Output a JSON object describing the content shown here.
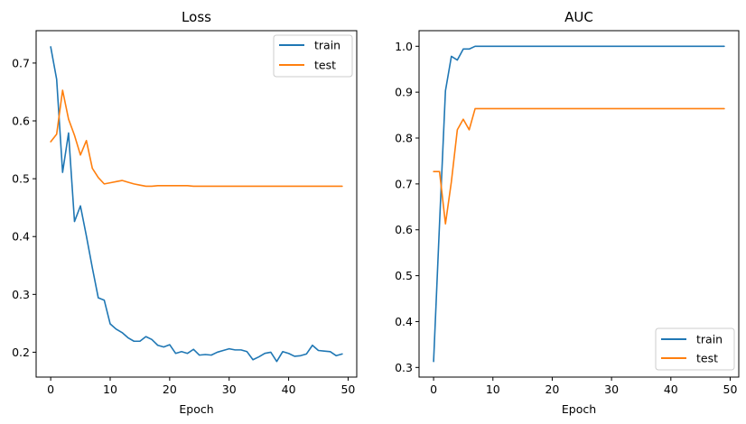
{
  "colors": {
    "train": "#1f77b4",
    "test": "#ff7f0e"
  },
  "chart_data": [
    {
      "type": "line",
      "title": "Loss",
      "xlabel": "Epoch",
      "ylabel": "",
      "xlim": [
        -2.45,
        51.45
      ],
      "ylim": [
        0.157,
        0.756
      ],
      "xticks": [
        0,
        10,
        20,
        30,
        40,
        50
      ],
      "yticks": [
        0.2,
        0.3,
        0.4,
        0.5,
        0.6,
        0.7
      ],
      "ytick_labels": [
        "0.2",
        "0.3",
        "0.4",
        "0.5",
        "0.6",
        "0.7"
      ],
      "legend_position": "upper right",
      "x": [
        0,
        1,
        2,
        3,
        4,
        5,
        6,
        7,
        8,
        9,
        10,
        11,
        12,
        13,
        14,
        15,
        16,
        17,
        18,
        19,
        20,
        21,
        22,
        23,
        24,
        25,
        26,
        27,
        28,
        29,
        30,
        31,
        32,
        33,
        34,
        35,
        36,
        37,
        38,
        39,
        40,
        41,
        42,
        43,
        44,
        45,
        46,
        47,
        48,
        49
      ],
      "series": [
        {
          "name": "train",
          "values": [
            0.728,
            0.672,
            0.511,
            0.579,
            0.426,
            0.453,
            0.401,
            0.346,
            0.294,
            0.29,
            0.249,
            0.24,
            0.234,
            0.225,
            0.219,
            0.219,
            0.227,
            0.222,
            0.212,
            0.209,
            0.213,
            0.198,
            0.201,
            0.198,
            0.205,
            0.195,
            0.196,
            0.195,
            0.2,
            0.203,
            0.206,
            0.204,
            0.204,
            0.201,
            0.187,
            0.192,
            0.198,
            0.2,
            0.184,
            0.201,
            0.198,
            0.193,
            0.194,
            0.197,
            0.212,
            0.203,
            0.202,
            0.201,
            0.194,
            0.197
          ]
        },
        {
          "name": "test",
          "values": [
            0.564,
            0.577,
            0.653,
            0.603,
            0.575,
            0.541,
            0.566,
            0.518,
            0.502,
            0.491,
            0.493,
            0.495,
            0.497,
            0.494,
            0.491,
            0.489,
            0.487,
            0.487,
            0.488,
            0.488,
            0.488,
            0.488,
            0.488,
            0.488,
            0.487,
            0.487,
            0.487,
            0.487,
            0.487,
            0.487,
            0.487,
            0.487,
            0.487,
            0.487,
            0.487,
            0.487,
            0.487,
            0.487,
            0.487,
            0.487,
            0.487,
            0.487,
            0.487,
            0.487,
            0.487,
            0.487,
            0.487,
            0.487,
            0.487,
            0.487
          ]
        }
      ]
    },
    {
      "type": "line",
      "title": "AUC",
      "xlabel": "Epoch",
      "ylabel": "",
      "xlim": [
        -2.45,
        51.45
      ],
      "ylim": [
        0.279,
        1.034
      ],
      "xticks": [
        0,
        10,
        20,
        30,
        40,
        50
      ],
      "yticks": [
        0.3,
        0.4,
        0.5,
        0.6,
        0.7,
        0.8,
        0.9,
        1.0
      ],
      "ytick_labels": [
        "0.3",
        "0.4",
        "0.5",
        "0.6",
        "0.7",
        "0.8",
        "0.9",
        "1.0"
      ],
      "legend_position": "lower right",
      "x": [
        0,
        1,
        2,
        3,
        4,
        5,
        6,
        7,
        8,
        9,
        10,
        11,
        12,
        13,
        14,
        15,
        16,
        17,
        18,
        19,
        20,
        21,
        22,
        23,
        24,
        25,
        26,
        27,
        28,
        29,
        30,
        31,
        32,
        33,
        34,
        35,
        36,
        37,
        38,
        39,
        40,
        41,
        42,
        43,
        44,
        45,
        46,
        47,
        48,
        49
      ],
      "series": [
        {
          "name": "train",
          "values": [
            0.313,
            0.613,
            0.903,
            0.978,
            0.97,
            0.994,
            0.994,
            1.0,
            1.0,
            1.0,
            1.0,
            1.0,
            1.0,
            1.0,
            1.0,
            1.0,
            1.0,
            1.0,
            1.0,
            1.0,
            1.0,
            1.0,
            1.0,
            1.0,
            1.0,
            1.0,
            1.0,
            1.0,
            1.0,
            1.0,
            1.0,
            1.0,
            1.0,
            1.0,
            1.0,
            1.0,
            1.0,
            1.0,
            1.0,
            1.0,
            1.0,
            1.0,
            1.0,
            1.0,
            1.0,
            1.0,
            1.0,
            1.0,
            1.0,
            1.0
          ]
        },
        {
          "name": "test",
          "values": [
            0.727,
            0.727,
            0.613,
            0.705,
            0.818,
            0.841,
            0.818,
            0.864,
            0.864,
            0.864,
            0.864,
            0.864,
            0.864,
            0.864,
            0.864,
            0.864,
            0.864,
            0.864,
            0.864,
            0.864,
            0.864,
            0.864,
            0.864,
            0.864,
            0.864,
            0.864,
            0.864,
            0.864,
            0.864,
            0.864,
            0.864,
            0.864,
            0.864,
            0.864,
            0.864,
            0.864,
            0.864,
            0.864,
            0.864,
            0.864,
            0.864,
            0.864,
            0.864,
            0.864,
            0.864,
            0.864,
            0.864,
            0.864,
            0.864,
            0.864
          ]
        }
      ]
    }
  ]
}
